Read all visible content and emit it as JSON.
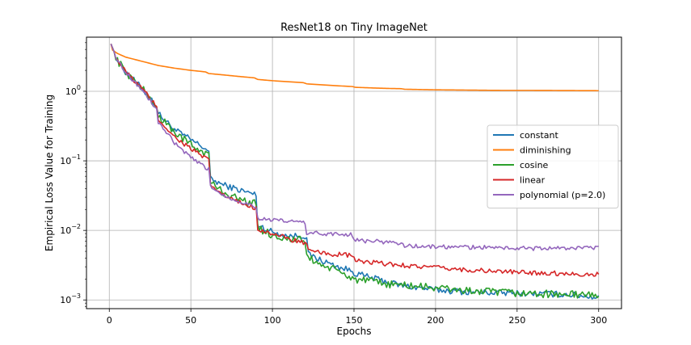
{
  "chart_data": {
    "type": "line",
    "title": "ResNet18 on Tiny ImageNet",
    "xlabel": "Epochs",
    "ylabel": "Empirical Loss Value for Training",
    "xlim": [
      -14,
      314
    ],
    "ylim": [
      0.00075,
      6.0
    ],
    "yscale": "log",
    "grid": true,
    "legend_position": "center-right",
    "x_ticks": [
      0,
      50,
      100,
      150,
      200,
      250,
      300
    ],
    "x_tick_labels": [
      "0",
      "50",
      "100",
      "150",
      "200",
      "250",
      "300"
    ],
    "y_ticks": [
      0.001,
      0.01,
      0.1,
      1
    ],
    "y_tick_labels": [
      {
        "base": "10",
        "exp": "−3"
      },
      {
        "base": "10",
        "exp": "−2"
      },
      {
        "base": "10",
        "exp": "−1"
      },
      {
        "base": "10",
        "exp": "0"
      }
    ],
    "series": [
      {
        "name": "constant",
        "color": "#1f77b4",
        "noise": 0.045,
        "points": [
          [
            1,
            4.8
          ],
          [
            5,
            2.8
          ],
          [
            10,
            1.9
          ],
          [
            20,
            1.1
          ],
          [
            29,
            0.62
          ],
          [
            30,
            0.48
          ],
          [
            40,
            0.28
          ],
          [
            50,
            0.2
          ],
          [
            60,
            0.145
          ],
          [
            61,
            0.132
          ],
          [
            62,
            0.055
          ],
          [
            70,
            0.045
          ],
          [
            80,
            0.038
          ],
          [
            89,
            0.033
          ],
          [
            90,
            0.031
          ],
          [
            91,
            0.012
          ],
          [
            100,
            0.0095
          ],
          [
            110,
            0.0082
          ],
          [
            119,
            0.0085
          ],
          [
            121,
            0.0078
          ],
          [
            122,
            0.0045
          ],
          [
            130,
            0.0037
          ],
          [
            140,
            0.003
          ],
          [
            149,
            0.0026
          ],
          [
            151,
            0.0024
          ],
          [
            160,
            0.0021
          ],
          [
            180,
            0.0016
          ],
          [
            200,
            0.0014
          ],
          [
            220,
            0.0013
          ],
          [
            250,
            0.00125
          ],
          [
            280,
            0.0012
          ],
          [
            300,
            0.0011
          ]
        ]
      },
      {
        "name": "diminishing",
        "color": "#ff7f0e",
        "noise": 0.0,
        "points": [
          [
            1,
            4.8
          ],
          [
            2,
            3.9
          ],
          [
            5,
            3.5
          ],
          [
            10,
            3.1
          ],
          [
            20,
            2.7
          ],
          [
            30,
            2.35
          ],
          [
            40,
            2.15
          ],
          [
            50,
            2.0
          ],
          [
            59,
            1.9
          ],
          [
            61,
            1.8
          ],
          [
            70,
            1.72
          ],
          [
            80,
            1.63
          ],
          [
            89,
            1.56
          ],
          [
            91,
            1.48
          ],
          [
            100,
            1.42
          ],
          [
            110,
            1.37
          ],
          [
            119,
            1.33
          ],
          [
            121,
            1.28
          ],
          [
            130,
            1.24
          ],
          [
            140,
            1.2
          ],
          [
            149,
            1.17
          ],
          [
            151,
            1.14
          ],
          [
            160,
            1.12
          ],
          [
            170,
            1.1
          ],
          [
            179,
            1.09
          ],
          [
            181,
            1.07
          ],
          [
            200,
            1.05
          ],
          [
            220,
            1.04
          ],
          [
            240,
            1.03
          ],
          [
            260,
            1.03
          ],
          [
            280,
            1.025
          ],
          [
            300,
            1.02
          ]
        ]
      },
      {
        "name": "cosine",
        "color": "#2ca02c",
        "noise": 0.055,
        "points": [
          [
            1,
            4.8
          ],
          [
            5,
            2.8
          ],
          [
            10,
            1.9
          ],
          [
            20,
            1.1
          ],
          [
            29,
            0.6
          ],
          [
            30,
            0.44
          ],
          [
            40,
            0.26
          ],
          [
            50,
            0.17
          ],
          [
            61,
            0.12
          ],
          [
            62,
            0.05
          ],
          [
            70,
            0.035
          ],
          [
            80,
            0.028
          ],
          [
            90,
            0.024
          ],
          [
            91,
            0.011
          ],
          [
            100,
            0.0085
          ],
          [
            110,
            0.0075
          ],
          [
            120,
            0.0072
          ],
          [
            121,
            0.0042
          ],
          [
            130,
            0.0032
          ],
          [
            140,
            0.0026
          ],
          [
            150,
            0.002
          ],
          [
            170,
            0.0017
          ],
          [
            200,
            0.0015
          ],
          [
            220,
            0.00135
          ],
          [
            250,
            0.00125
          ],
          [
            280,
            0.0012
          ],
          [
            300,
            0.00118
          ]
        ]
      },
      {
        "name": "linear",
        "color": "#d62728",
        "noise": 0.035,
        "points": [
          [
            1,
            4.8
          ],
          [
            5,
            2.8
          ],
          [
            10,
            1.9
          ],
          [
            20,
            1.1
          ],
          [
            29,
            0.6
          ],
          [
            30,
            0.4
          ],
          [
            40,
            0.22
          ],
          [
            50,
            0.15
          ],
          [
            61,
            0.1
          ],
          [
            62,
            0.045
          ],
          [
            70,
            0.032
          ],
          [
            80,
            0.025
          ],
          [
            90,
            0.021
          ],
          [
            91,
            0.0105
          ],
          [
            100,
            0.009
          ],
          [
            110,
            0.0075
          ],
          [
            121,
            0.0065
          ],
          [
            122,
            0.005
          ],
          [
            130,
            0.0047
          ],
          [
            140,
            0.0045
          ],
          [
            150,
            0.0043
          ],
          [
            151,
            0.0036
          ],
          [
            170,
            0.0033
          ],
          [
            200,
            0.0029
          ],
          [
            220,
            0.0027
          ],
          [
            250,
            0.0025
          ],
          [
            280,
            0.0024
          ],
          [
            300,
            0.0023
          ]
        ]
      },
      {
        "name": "polynomial (p=2.0)",
        "color": "#9467bd",
        "noise": 0.03,
        "points": [
          [
            1,
            4.8
          ],
          [
            5,
            2.8
          ],
          [
            10,
            1.9
          ],
          [
            20,
            1.05
          ],
          [
            29,
            0.55
          ],
          [
            30,
            0.36
          ],
          [
            40,
            0.18
          ],
          [
            50,
            0.11
          ],
          [
            61,
            0.075
          ],
          [
            62,
            0.043
          ],
          [
            70,
            0.032
          ],
          [
            80,
            0.026
          ],
          [
            90,
            0.022
          ],
          [
            91,
            0.015
          ],
          [
            100,
            0.014
          ],
          [
            110,
            0.0135
          ],
          [
            120,
            0.013
          ],
          [
            121,
            0.0092
          ],
          [
            130,
            0.009
          ],
          [
            140,
            0.0088
          ],
          [
            149,
            0.0087
          ],
          [
            151,
            0.0072
          ],
          [
            170,
            0.0068
          ],
          [
            180,
            0.0065
          ],
          [
            181,
            0.006
          ],
          [
            200,
            0.0058
          ],
          [
            230,
            0.0057
          ],
          [
            260,
            0.0055
          ],
          [
            290,
            0.0056
          ],
          [
            300,
            0.0056
          ]
        ]
      }
    ]
  }
}
